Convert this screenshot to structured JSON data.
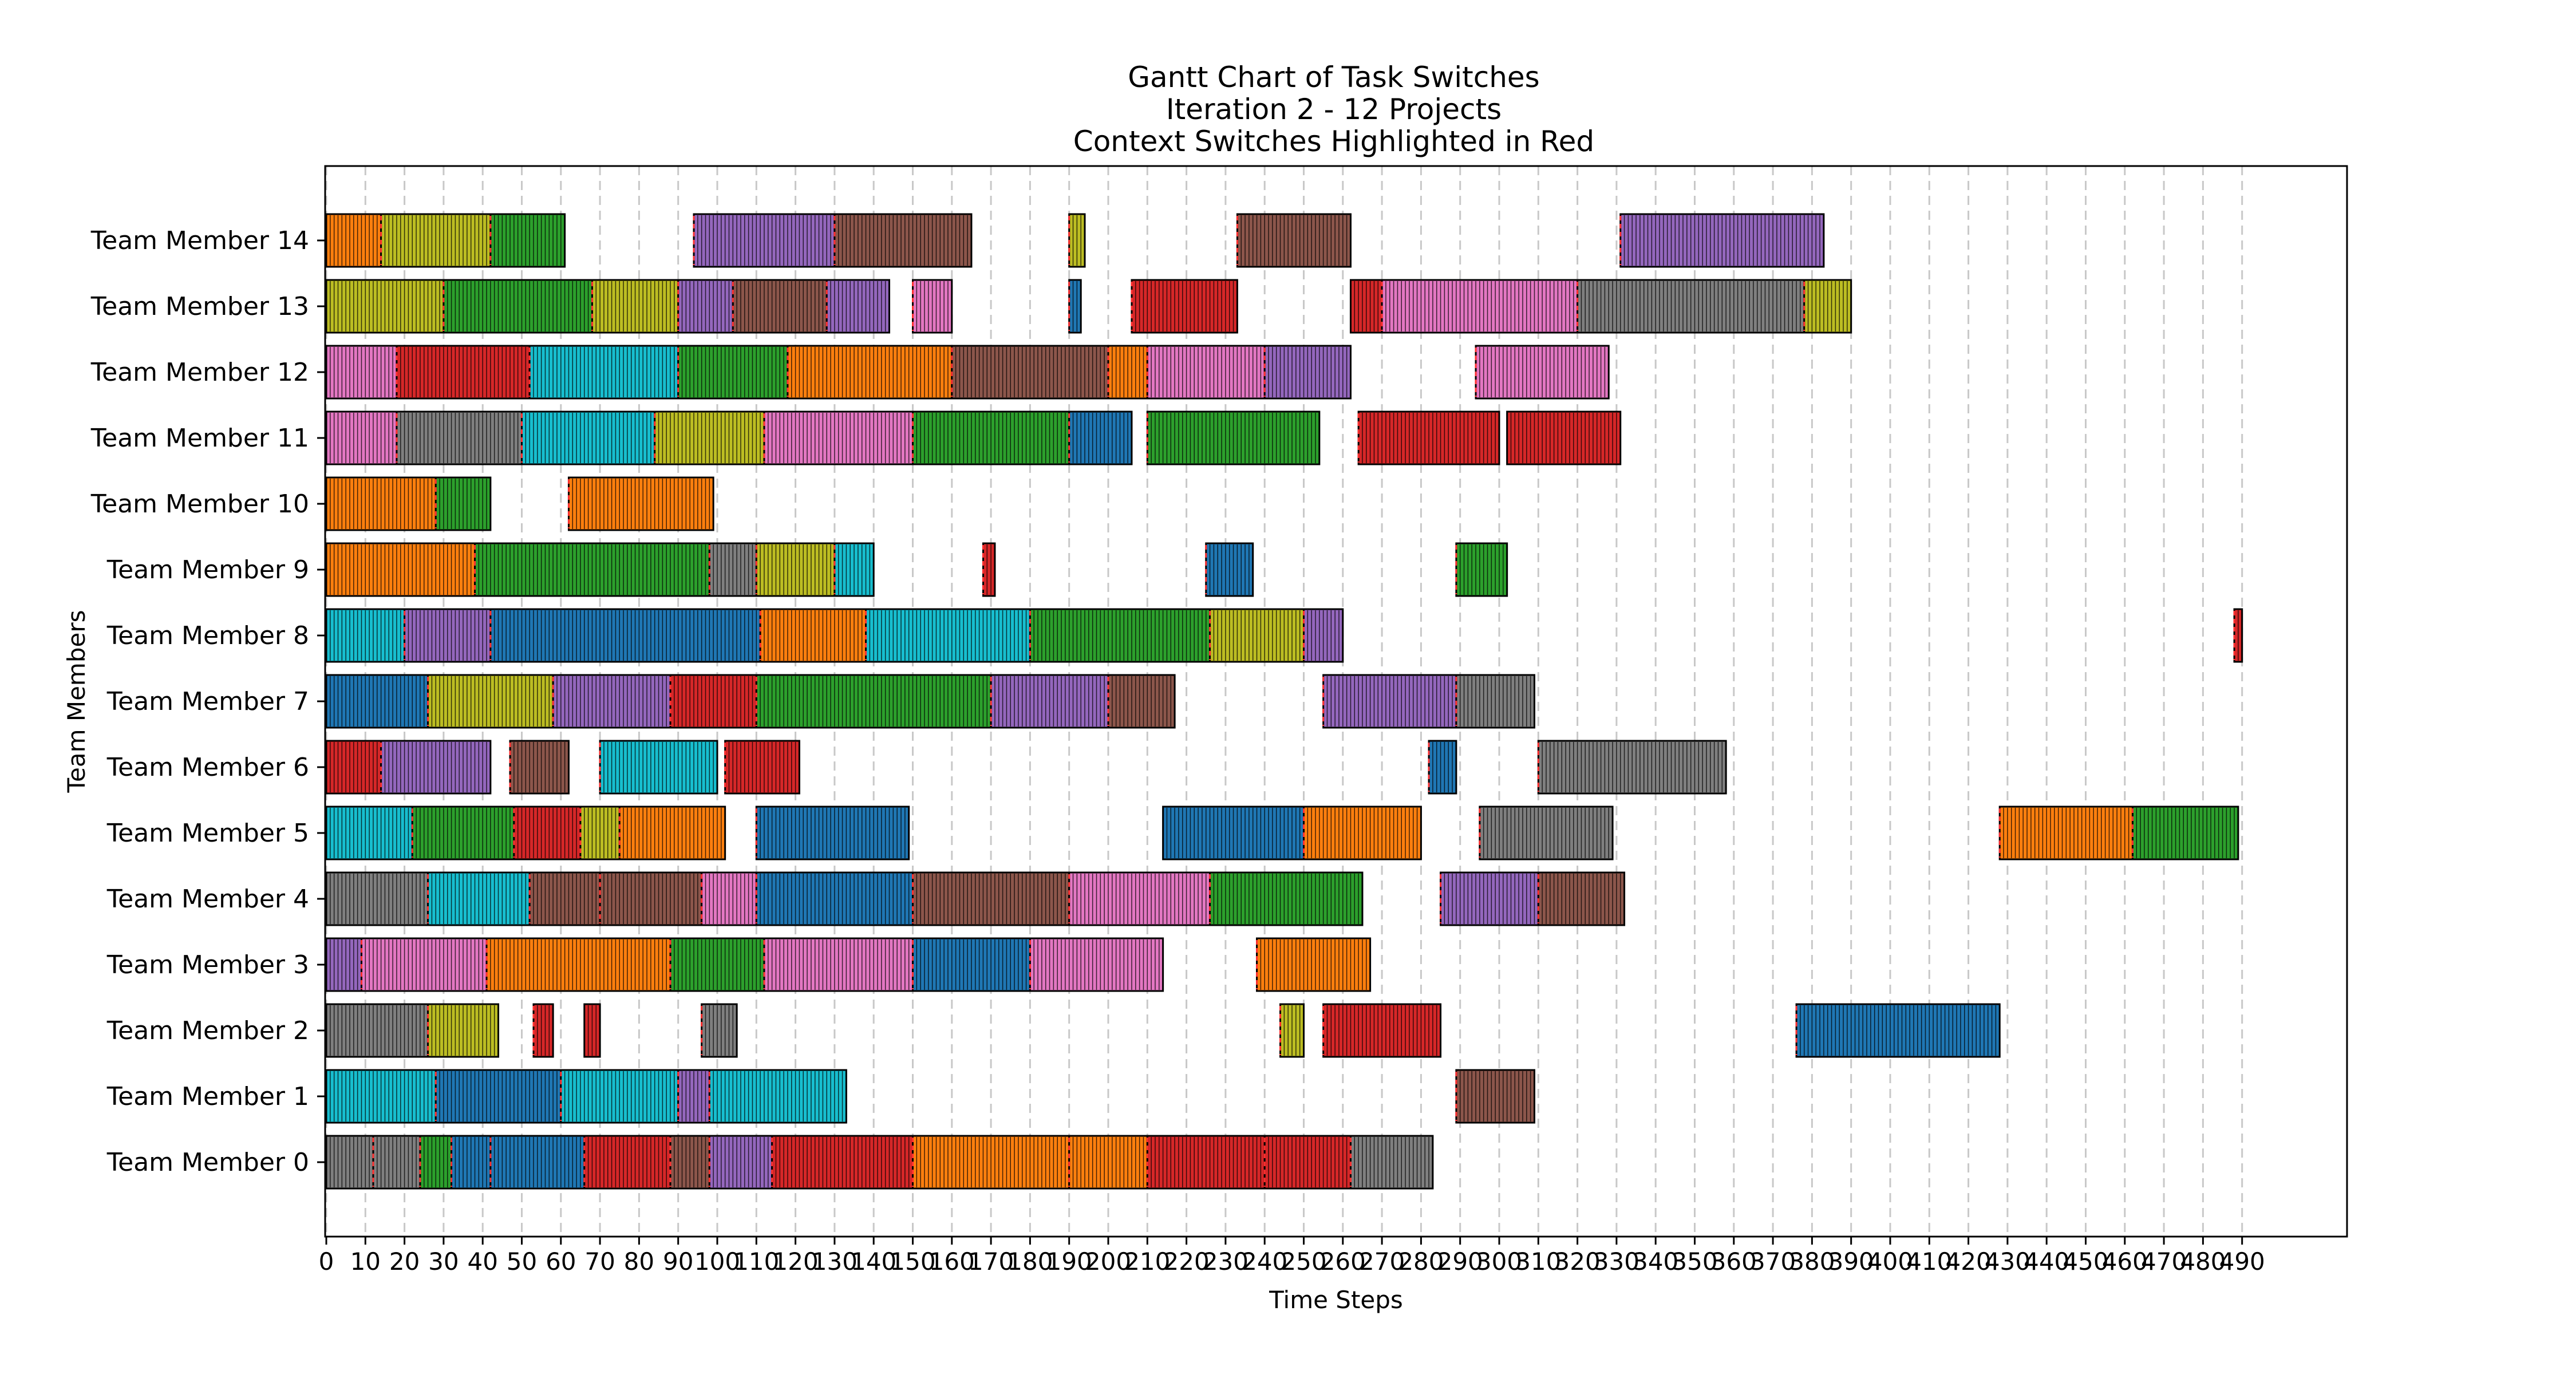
{
  "chart_data": {
    "type": "gantt",
    "title": [
      "Gantt Chart of Task Switches",
      "Iteration 2 - 12 Projects",
      "Context Switches Highlighted in Red"
    ],
    "xlabel": "Time Steps",
    "ylabel": "Team Members",
    "xlim": [
      0,
      515
    ],
    "xticks": [
      0,
      10,
      20,
      30,
      40,
      50,
      60,
      70,
      80,
      90,
      100,
      110,
      120,
      130,
      140,
      150,
      160,
      170,
      180,
      190,
      200,
      210,
      220,
      230,
      240,
      250,
      260,
      270,
      280,
      290,
      300,
      310,
      320,
      330,
      340,
      350,
      360,
      370,
      380,
      390,
      400,
      410,
      420,
      430,
      440,
      450,
      460,
      470,
      480,
      490
    ],
    "grid": "vertical-dashed",
    "project_colors": {
      "orange": "#ff7f0e",
      "olive": "#bcbd22",
      "green": "#2ca02c",
      "purple": "#9467bd",
      "brown": "#8c564b",
      "red": "#d62728",
      "pink": "#e377c2",
      "gray": "#7f7f7f",
      "cyan": "#17becf",
      "blue": "#1f77b4"
    },
    "switch_color": "#ff3030",
    "members": [
      {
        "name": "Team Member 0",
        "segments": [
          {
            "start": 0,
            "end": 12,
            "project": "gray"
          },
          {
            "start": 12,
            "end": 24,
            "project": "gray"
          },
          {
            "start": 24,
            "end": 32,
            "project": "green"
          },
          {
            "start": 32,
            "end": 42,
            "project": "blue"
          },
          {
            "start": 42,
            "end": 66,
            "project": "blue"
          },
          {
            "start": 66,
            "end": 88,
            "project": "red"
          },
          {
            "start": 88,
            "end": 98,
            "project": "brown"
          },
          {
            "start": 98,
            "end": 114,
            "project": "purple"
          },
          {
            "start": 114,
            "end": 150,
            "project": "red"
          },
          {
            "start": 150,
            "end": 190,
            "project": "orange"
          },
          {
            "start": 190,
            "end": 210,
            "project": "orange"
          },
          {
            "start": 210,
            "end": 240,
            "project": "red"
          },
          {
            "start": 240,
            "end": 262,
            "project": "red"
          },
          {
            "start": 262,
            "end": 283,
            "project": "gray"
          }
        ]
      },
      {
        "name": "Team Member 1",
        "segments": [
          {
            "start": 0,
            "end": 28,
            "project": "cyan"
          },
          {
            "start": 28,
            "end": 60,
            "project": "blue"
          },
          {
            "start": 60,
            "end": 90,
            "project": "cyan"
          },
          {
            "start": 90,
            "end": 98,
            "project": "purple"
          },
          {
            "start": 98,
            "end": 133,
            "project": "cyan"
          },
          {
            "start": 289,
            "end": 309,
            "project": "brown"
          }
        ]
      },
      {
        "name": "Team Member 2",
        "segments": [
          {
            "start": 0,
            "end": 26,
            "project": "gray"
          },
          {
            "start": 26,
            "end": 44,
            "project": "olive"
          },
          {
            "start": 53,
            "end": 58,
            "project": "red"
          },
          {
            "start": 66,
            "end": 70,
            "project": "red"
          },
          {
            "start": 96,
            "end": 105,
            "project": "gray"
          },
          {
            "start": 244,
            "end": 250,
            "project": "olive"
          },
          {
            "start": 255,
            "end": 285,
            "project": "red"
          },
          {
            "start": 376,
            "end": 428,
            "project": "blue"
          }
        ]
      },
      {
        "name": "Team Member 3",
        "segments": [
          {
            "start": 0,
            "end": 9,
            "project": "purple"
          },
          {
            "start": 9,
            "end": 41,
            "project": "pink"
          },
          {
            "start": 41,
            "end": 88,
            "project": "orange"
          },
          {
            "start": 88,
            "end": 112,
            "project": "green"
          },
          {
            "start": 112,
            "end": 150,
            "project": "pink"
          },
          {
            "start": 150,
            "end": 180,
            "project": "blue"
          },
          {
            "start": 180,
            "end": 214,
            "project": "pink"
          },
          {
            "start": 238,
            "end": 267,
            "project": "orange"
          }
        ]
      },
      {
        "name": "Team Member 4",
        "segments": [
          {
            "start": 0,
            "end": 26,
            "project": "gray"
          },
          {
            "start": 26,
            "end": 52,
            "project": "cyan"
          },
          {
            "start": 52,
            "end": 70,
            "project": "brown"
          },
          {
            "start": 70,
            "end": 96,
            "project": "brown"
          },
          {
            "start": 96,
            "end": 110,
            "project": "pink"
          },
          {
            "start": 110,
            "end": 150,
            "project": "blue"
          },
          {
            "start": 150,
            "end": 190,
            "project": "brown"
          },
          {
            "start": 190,
            "end": 226,
            "project": "pink"
          },
          {
            "start": 226,
            "end": 265,
            "project": "green"
          },
          {
            "start": 285,
            "end": 310,
            "project": "purple"
          },
          {
            "start": 310,
            "end": 332,
            "project": "brown"
          }
        ]
      },
      {
        "name": "Team Member 5",
        "segments": [
          {
            "start": 0,
            "end": 22,
            "project": "cyan"
          },
          {
            "start": 22,
            "end": 48,
            "project": "green"
          },
          {
            "start": 48,
            "end": 65,
            "project": "red"
          },
          {
            "start": 65,
            "end": 75,
            "project": "olive"
          },
          {
            "start": 75,
            "end": 102,
            "project": "orange"
          },
          {
            "start": 110,
            "end": 149,
            "project": "blue"
          },
          {
            "start": 214,
            "end": 250,
            "project": "blue"
          },
          {
            "start": 250,
            "end": 280,
            "project": "orange"
          },
          {
            "start": 295,
            "end": 329,
            "project": "gray"
          },
          {
            "start": 428,
            "end": 462,
            "project": "orange"
          },
          {
            "start": 462,
            "end": 489,
            "project": "green"
          }
        ]
      },
      {
        "name": "Team Member 6",
        "segments": [
          {
            "start": 0,
            "end": 14,
            "project": "red"
          },
          {
            "start": 14,
            "end": 42,
            "project": "purple"
          },
          {
            "start": 47,
            "end": 62,
            "project": "brown"
          },
          {
            "start": 70,
            "end": 100,
            "project": "cyan"
          },
          {
            "start": 102,
            "end": 121,
            "project": "red"
          },
          {
            "start": 282,
            "end": 289,
            "project": "blue"
          },
          {
            "start": 310,
            "end": 358,
            "project": "gray"
          }
        ]
      },
      {
        "name": "Team Member 7",
        "segments": [
          {
            "start": 0,
            "end": 26,
            "project": "blue"
          },
          {
            "start": 26,
            "end": 58,
            "project": "olive"
          },
          {
            "start": 58,
            "end": 88,
            "project": "purple"
          },
          {
            "start": 88,
            "end": 110,
            "project": "red"
          },
          {
            "start": 110,
            "end": 170,
            "project": "green"
          },
          {
            "start": 170,
            "end": 200,
            "project": "purple"
          },
          {
            "start": 200,
            "end": 217,
            "project": "brown"
          },
          {
            "start": 255,
            "end": 289,
            "project": "purple"
          },
          {
            "start": 289,
            "end": 309,
            "project": "gray"
          }
        ]
      },
      {
        "name": "Team Member 8",
        "segments": [
          {
            "start": 0,
            "end": 20,
            "project": "cyan"
          },
          {
            "start": 20,
            "end": 42,
            "project": "purple"
          },
          {
            "start": 42,
            "end": 111,
            "project": "blue"
          },
          {
            "start": 111,
            "end": 138,
            "project": "orange"
          },
          {
            "start": 138,
            "end": 180,
            "project": "cyan"
          },
          {
            "start": 180,
            "end": 226,
            "project": "green"
          },
          {
            "start": 226,
            "end": 250,
            "project": "olive"
          },
          {
            "start": 250,
            "end": 260,
            "project": "purple"
          },
          {
            "start": 488,
            "end": 490,
            "project": "red"
          }
        ]
      },
      {
        "name": "Team Member 9",
        "segments": [
          {
            "start": 0,
            "end": 38,
            "project": "orange"
          },
          {
            "start": 38,
            "end": 98,
            "project": "green"
          },
          {
            "start": 98,
            "end": 110,
            "project": "gray"
          },
          {
            "start": 110,
            "end": 130,
            "project": "olive"
          },
          {
            "start": 130,
            "end": 140,
            "project": "cyan"
          },
          {
            "start": 168,
            "end": 171,
            "project": "red"
          },
          {
            "start": 225,
            "end": 237,
            "project": "blue"
          },
          {
            "start": 289,
            "end": 302,
            "project": "green"
          }
        ]
      },
      {
        "name": "Team Member 10",
        "segments": [
          {
            "start": 0,
            "end": 28,
            "project": "orange"
          },
          {
            "start": 28,
            "end": 42,
            "project": "green"
          },
          {
            "start": 62,
            "end": 99,
            "project": "orange"
          }
        ]
      },
      {
        "name": "Team Member 11",
        "segments": [
          {
            "start": 0,
            "end": 18,
            "project": "pink"
          },
          {
            "start": 18,
            "end": 50,
            "project": "gray"
          },
          {
            "start": 50,
            "end": 84,
            "project": "cyan"
          },
          {
            "start": 84,
            "end": 112,
            "project": "olive"
          },
          {
            "start": 112,
            "end": 150,
            "project": "pink"
          },
          {
            "start": 150,
            "end": 190,
            "project": "green"
          },
          {
            "start": 190,
            "end": 206,
            "project": "blue"
          },
          {
            "start": 210,
            "end": 254,
            "project": "green"
          },
          {
            "start": 264,
            "end": 300,
            "project": "red"
          },
          {
            "start": 302,
            "end": 331,
            "project": "red"
          }
        ]
      },
      {
        "name": "Team Member 12",
        "segments": [
          {
            "start": 0,
            "end": 18,
            "project": "pink"
          },
          {
            "start": 18,
            "end": 52,
            "project": "red"
          },
          {
            "start": 52,
            "end": 90,
            "project": "cyan"
          },
          {
            "start": 90,
            "end": 118,
            "project": "green"
          },
          {
            "start": 118,
            "end": 160,
            "project": "orange"
          },
          {
            "start": 160,
            "end": 200,
            "project": "brown"
          },
          {
            "start": 200,
            "end": 210,
            "project": "orange"
          },
          {
            "start": 210,
            "end": 240,
            "project": "pink"
          },
          {
            "start": 240,
            "end": 262,
            "project": "purple"
          },
          {
            "start": 294,
            "end": 328,
            "project": "pink"
          }
        ]
      },
      {
        "name": "Team Member 13",
        "segments": [
          {
            "start": 0,
            "end": 30,
            "project": "olive"
          },
          {
            "start": 30,
            "end": 68,
            "project": "green"
          },
          {
            "start": 68,
            "end": 90,
            "project": "olive"
          },
          {
            "start": 90,
            "end": 104,
            "project": "purple"
          },
          {
            "start": 104,
            "end": 128,
            "project": "brown"
          },
          {
            "start": 128,
            "end": 144,
            "project": "purple"
          },
          {
            "start": 150,
            "end": 160,
            "project": "pink"
          },
          {
            "start": 190,
            "end": 193,
            "project": "blue"
          },
          {
            "start": 206,
            "end": 233,
            "project": "red"
          },
          {
            "start": 262,
            "end": 270,
            "project": "red"
          },
          {
            "start": 270,
            "end": 320,
            "project": "pink"
          },
          {
            "start": 320,
            "end": 378,
            "project": "gray"
          },
          {
            "start": 378,
            "end": 390,
            "project": "olive"
          }
        ]
      },
      {
        "name": "Team Member 14",
        "segments": [
          {
            "start": 0,
            "end": 14,
            "project": "orange"
          },
          {
            "start": 14,
            "end": 42,
            "project": "olive"
          },
          {
            "start": 42,
            "end": 61,
            "project": "green"
          },
          {
            "start": 94,
            "end": 130,
            "project": "purple"
          },
          {
            "start": 130,
            "end": 165,
            "project": "brown"
          },
          {
            "start": 190,
            "end": 194,
            "project": "olive"
          },
          {
            "start": 233,
            "end": 262,
            "project": "brown"
          },
          {
            "start": 331,
            "end": 383,
            "project": "purple"
          }
        ]
      }
    ]
  }
}
